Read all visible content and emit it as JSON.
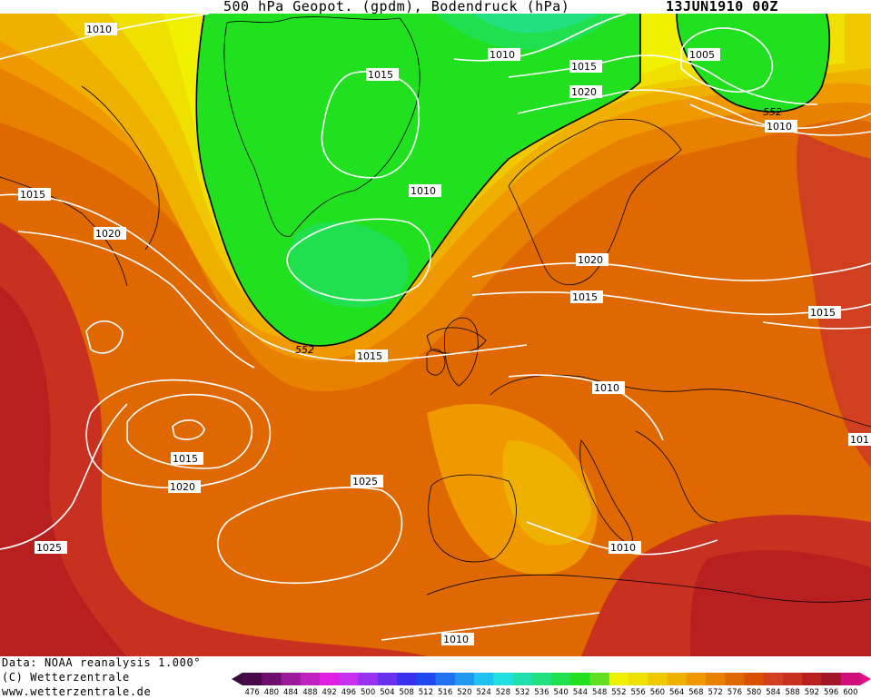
{
  "header": {
    "title": "500 hPa Geopot. (gpdm), Bodendruck (hPa)",
    "date": "13JUN1910 00Z"
  },
  "footer": {
    "data_source": "Data: NOAA reanalysis 1.000°",
    "copyright": "(C) Wetterzentrale",
    "website": "www.wetterzentrale.de"
  },
  "legend": {
    "values": [
      "476",
      "480",
      "484",
      "488",
      "492",
      "496",
      "500",
      "504",
      "508",
      "512",
      "516",
      "520",
      "524",
      "528",
      "532",
      "536",
      "540",
      "544",
      "548",
      "552",
      "556",
      "560",
      "564",
      "568",
      "572",
      "576",
      "580",
      "584",
      "588",
      "592",
      "596",
      "600"
    ],
    "colors": [
      "#4a0a4a",
      "#6e0f6e",
      "#9a1a9a",
      "#c020c0",
      "#e020e0",
      "#c830f0",
      "#9a30f0",
      "#6a30f0",
      "#3a30f0",
      "#2048f0",
      "#2070f0",
      "#2098f0",
      "#20c0f0",
      "#20e0e0",
      "#20e0b0",
      "#20e080",
      "#20e050",
      "#20e020",
      "#60e020",
      "#f0f000",
      "#f0e000",
      "#f0c800",
      "#f0b000",
      "#f09800",
      "#e88000",
      "#e06800",
      "#d85000",
      "#d04020",
      "#c83020",
      "#b82020",
      "#a01828",
      "#d0107a"
    ],
    "arrow_left_color": "#3a0a3a",
    "arrow_right_color": "#e01088"
  },
  "contour_labels": {
    "height_552": "552",
    "isobars": [
      "1010",
      "1015",
      "1020",
      "1025",
      "1005",
      "101"
    ]
  },
  "map_colors": {
    "ocean_background": "#f0a000",
    "land_lines": "#000000",
    "isobar_lines": "#ffffff"
  }
}
